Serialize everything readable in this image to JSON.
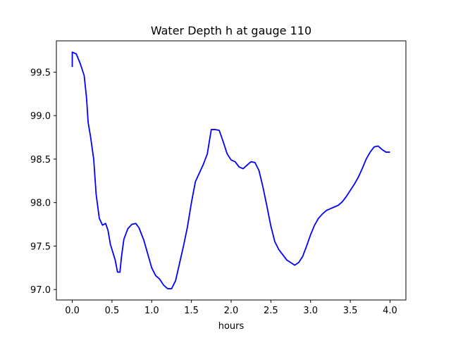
{
  "chart_data": {
    "type": "line",
    "title": "Water Depth h at gauge 110",
    "xlabel": "hours",
    "ylabel": "",
    "xlim": [
      -0.2,
      4.2
    ],
    "ylim": [
      96.88,
      99.86
    ],
    "xticks": [
      0.0,
      0.5,
      1.0,
      1.5,
      2.0,
      2.5,
      3.0,
      3.5,
      4.0
    ],
    "xtick_labels": [
      "0.0",
      "0.5",
      "1.0",
      "1.5",
      "2.0",
      "2.5",
      "3.0",
      "3.5",
      "4.0"
    ],
    "yticks": [
      97.0,
      97.5,
      98.0,
      98.5,
      99.0,
      99.5
    ],
    "ytick_labels": [
      "97.0",
      "97.5",
      "98.0",
      "98.5",
      "99.0",
      "99.5"
    ],
    "grid": false,
    "series": [
      {
        "color": "#0000ff",
        "x": [
          0.0,
          0.0,
          0.05,
          0.1,
          0.15,
          0.18,
          0.2,
          0.23,
          0.27,
          0.3,
          0.34,
          0.38,
          0.42,
          0.45,
          0.48,
          0.5,
          0.54,
          0.57,
          0.6,
          0.62,
          0.65,
          0.7,
          0.75,
          0.8,
          0.84,
          0.9,
          0.95,
          1.0,
          1.05,
          1.1,
          1.15,
          1.2,
          1.25,
          1.3,
          1.35,
          1.4,
          1.45,
          1.5,
          1.55,
          1.6,
          1.65,
          1.7,
          1.75,
          1.8,
          1.85,
          1.9,
          1.95,
          2.0,
          2.05,
          2.1,
          2.15,
          2.2,
          2.25,
          2.3,
          2.35,
          2.4,
          2.45,
          2.5,
          2.55,
          2.6,
          2.65,
          2.7,
          2.75,
          2.8,
          2.85,
          2.9,
          2.95,
          3.0,
          3.05,
          3.1,
          3.15,
          3.2,
          3.25,
          3.3,
          3.35,
          3.4,
          3.45,
          3.5,
          3.55,
          3.6,
          3.65,
          3.7,
          3.75,
          3.8,
          3.85,
          3.9,
          3.95,
          4.0
        ],
        "y": [
          99.56,
          99.73,
          99.71,
          99.6,
          99.46,
          99.2,
          98.92,
          98.76,
          98.5,
          98.1,
          97.82,
          97.74,
          97.76,
          97.68,
          97.52,
          97.46,
          97.34,
          97.2,
          97.2,
          97.38,
          97.58,
          97.7,
          97.75,
          97.76,
          97.71,
          97.57,
          97.41,
          97.25,
          97.16,
          97.12,
          97.05,
          97.01,
          97.01,
          97.1,
          97.3,
          97.5,
          97.72,
          98.0,
          98.24,
          98.34,
          98.44,
          98.56,
          98.84,
          98.84,
          98.83,
          98.7,
          98.56,
          98.49,
          98.47,
          98.41,
          98.39,
          98.43,
          98.47,
          98.46,
          98.37,
          98.18,
          97.96,
          97.73,
          97.55,
          97.46,
          97.4,
          97.34,
          97.31,
          97.28,
          97.31,
          97.38,
          97.5,
          97.63,
          97.74,
          97.82,
          97.87,
          97.91,
          97.93,
          97.95,
          97.97,
          98.01,
          98.07,
          98.14,
          98.21,
          98.29,
          98.39,
          98.5,
          98.58,
          98.64,
          98.65,
          98.61,
          98.58,
          98.58
        ]
      }
    ]
  }
}
